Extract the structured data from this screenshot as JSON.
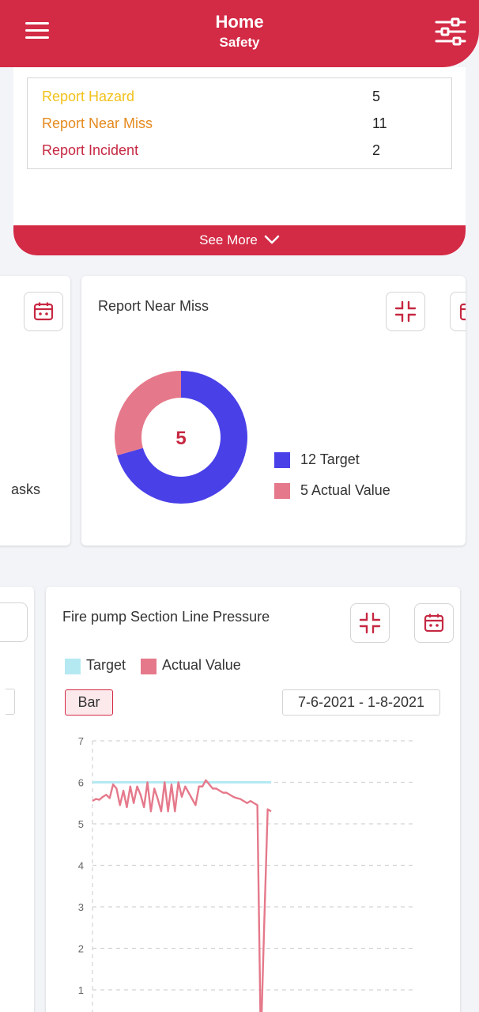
{
  "header": {
    "title": "Home",
    "subtitle": "Safety"
  },
  "reports": [
    {
      "label": "Report Hazard",
      "count": "5",
      "color": "#f2c21b"
    },
    {
      "label": "Report Near Miss",
      "count": "11",
      "color": "#e58a1f"
    },
    {
      "label": "Report Incident",
      "count": "2",
      "color": "#c62842"
    }
  ],
  "see_more": {
    "label": "See More"
  },
  "left_card": {
    "partial_text": "asks"
  },
  "near_miss_card": {
    "title": "Report Near Miss",
    "center_value": "5",
    "legend": [
      {
        "label": "12 Target",
        "color": "#4a40e8"
      },
      {
        "label": "5 Actual Value",
        "color": "#e5798b"
      }
    ]
  },
  "pressure_card": {
    "title": "Fire pump Section Line Pressure",
    "legend": [
      {
        "label": "Target",
        "color": "#b4e9f2"
      },
      {
        "label": "Actual Value",
        "color": "#e5798b"
      }
    ],
    "bar_button": "Bar",
    "date_range": "7-6-2021 - 1-8-2021"
  },
  "chart_data": [
    {
      "type": "pie",
      "title": "Report Near Miss",
      "center_label": "5",
      "series": [
        {
          "name": "Target",
          "value": 12,
          "color": "#4a40e8"
        },
        {
          "name": "Actual Value",
          "value": 5,
          "color": "#e5798b"
        }
      ]
    },
    {
      "type": "line",
      "title": "Fire pump Section Line Pressure",
      "yticks": [
        1,
        2,
        3,
        4,
        5,
        6,
        7
      ],
      "ylim": [
        0,
        7
      ],
      "grid": true,
      "legend": "top-left",
      "series": [
        {
          "name": "Target",
          "color": "#b4e9f2",
          "values": [
            6,
            6,
            6,
            6,
            6,
            6,
            6,
            6,
            6,
            6,
            6,
            6,
            6,
            6,
            6,
            6,
            6,
            6,
            6,
            6,
            6,
            6,
            6,
            6,
            6,
            6,
            6,
            6,
            6,
            6,
            6,
            6,
            6,
            6,
            6,
            6,
            6,
            6,
            6,
            6,
            6,
            6,
            6,
            6,
            6,
            6,
            6,
            6,
            6,
            6,
            6,
            6,
            6
          ]
        },
        {
          "name": "Actual Value",
          "color": "#e5798b",
          "values": [
            5.55,
            5.6,
            5.58,
            5.65,
            5.7,
            5.62,
            5.95,
            5.85,
            5.45,
            5.8,
            5.4,
            5.9,
            5.5,
            5.9,
            5.7,
            5.4,
            6.0,
            5.3,
            5.85,
            5.6,
            5.3,
            6.0,
            5.3,
            5.95,
            5.3,
            6.0,
            5.65,
            5.9,
            5.75,
            5.6,
            5.45,
            5.9,
            5.9,
            6.05,
            5.95,
            5.85,
            5.85,
            5.8,
            5.75,
            5.75,
            5.7,
            5.65,
            5.62,
            5.6,
            5.55,
            5.5,
            5.55,
            5.5,
            5.45,
            0,
            2.6,
            5.35,
            5.3
          ]
        }
      ]
    }
  ]
}
